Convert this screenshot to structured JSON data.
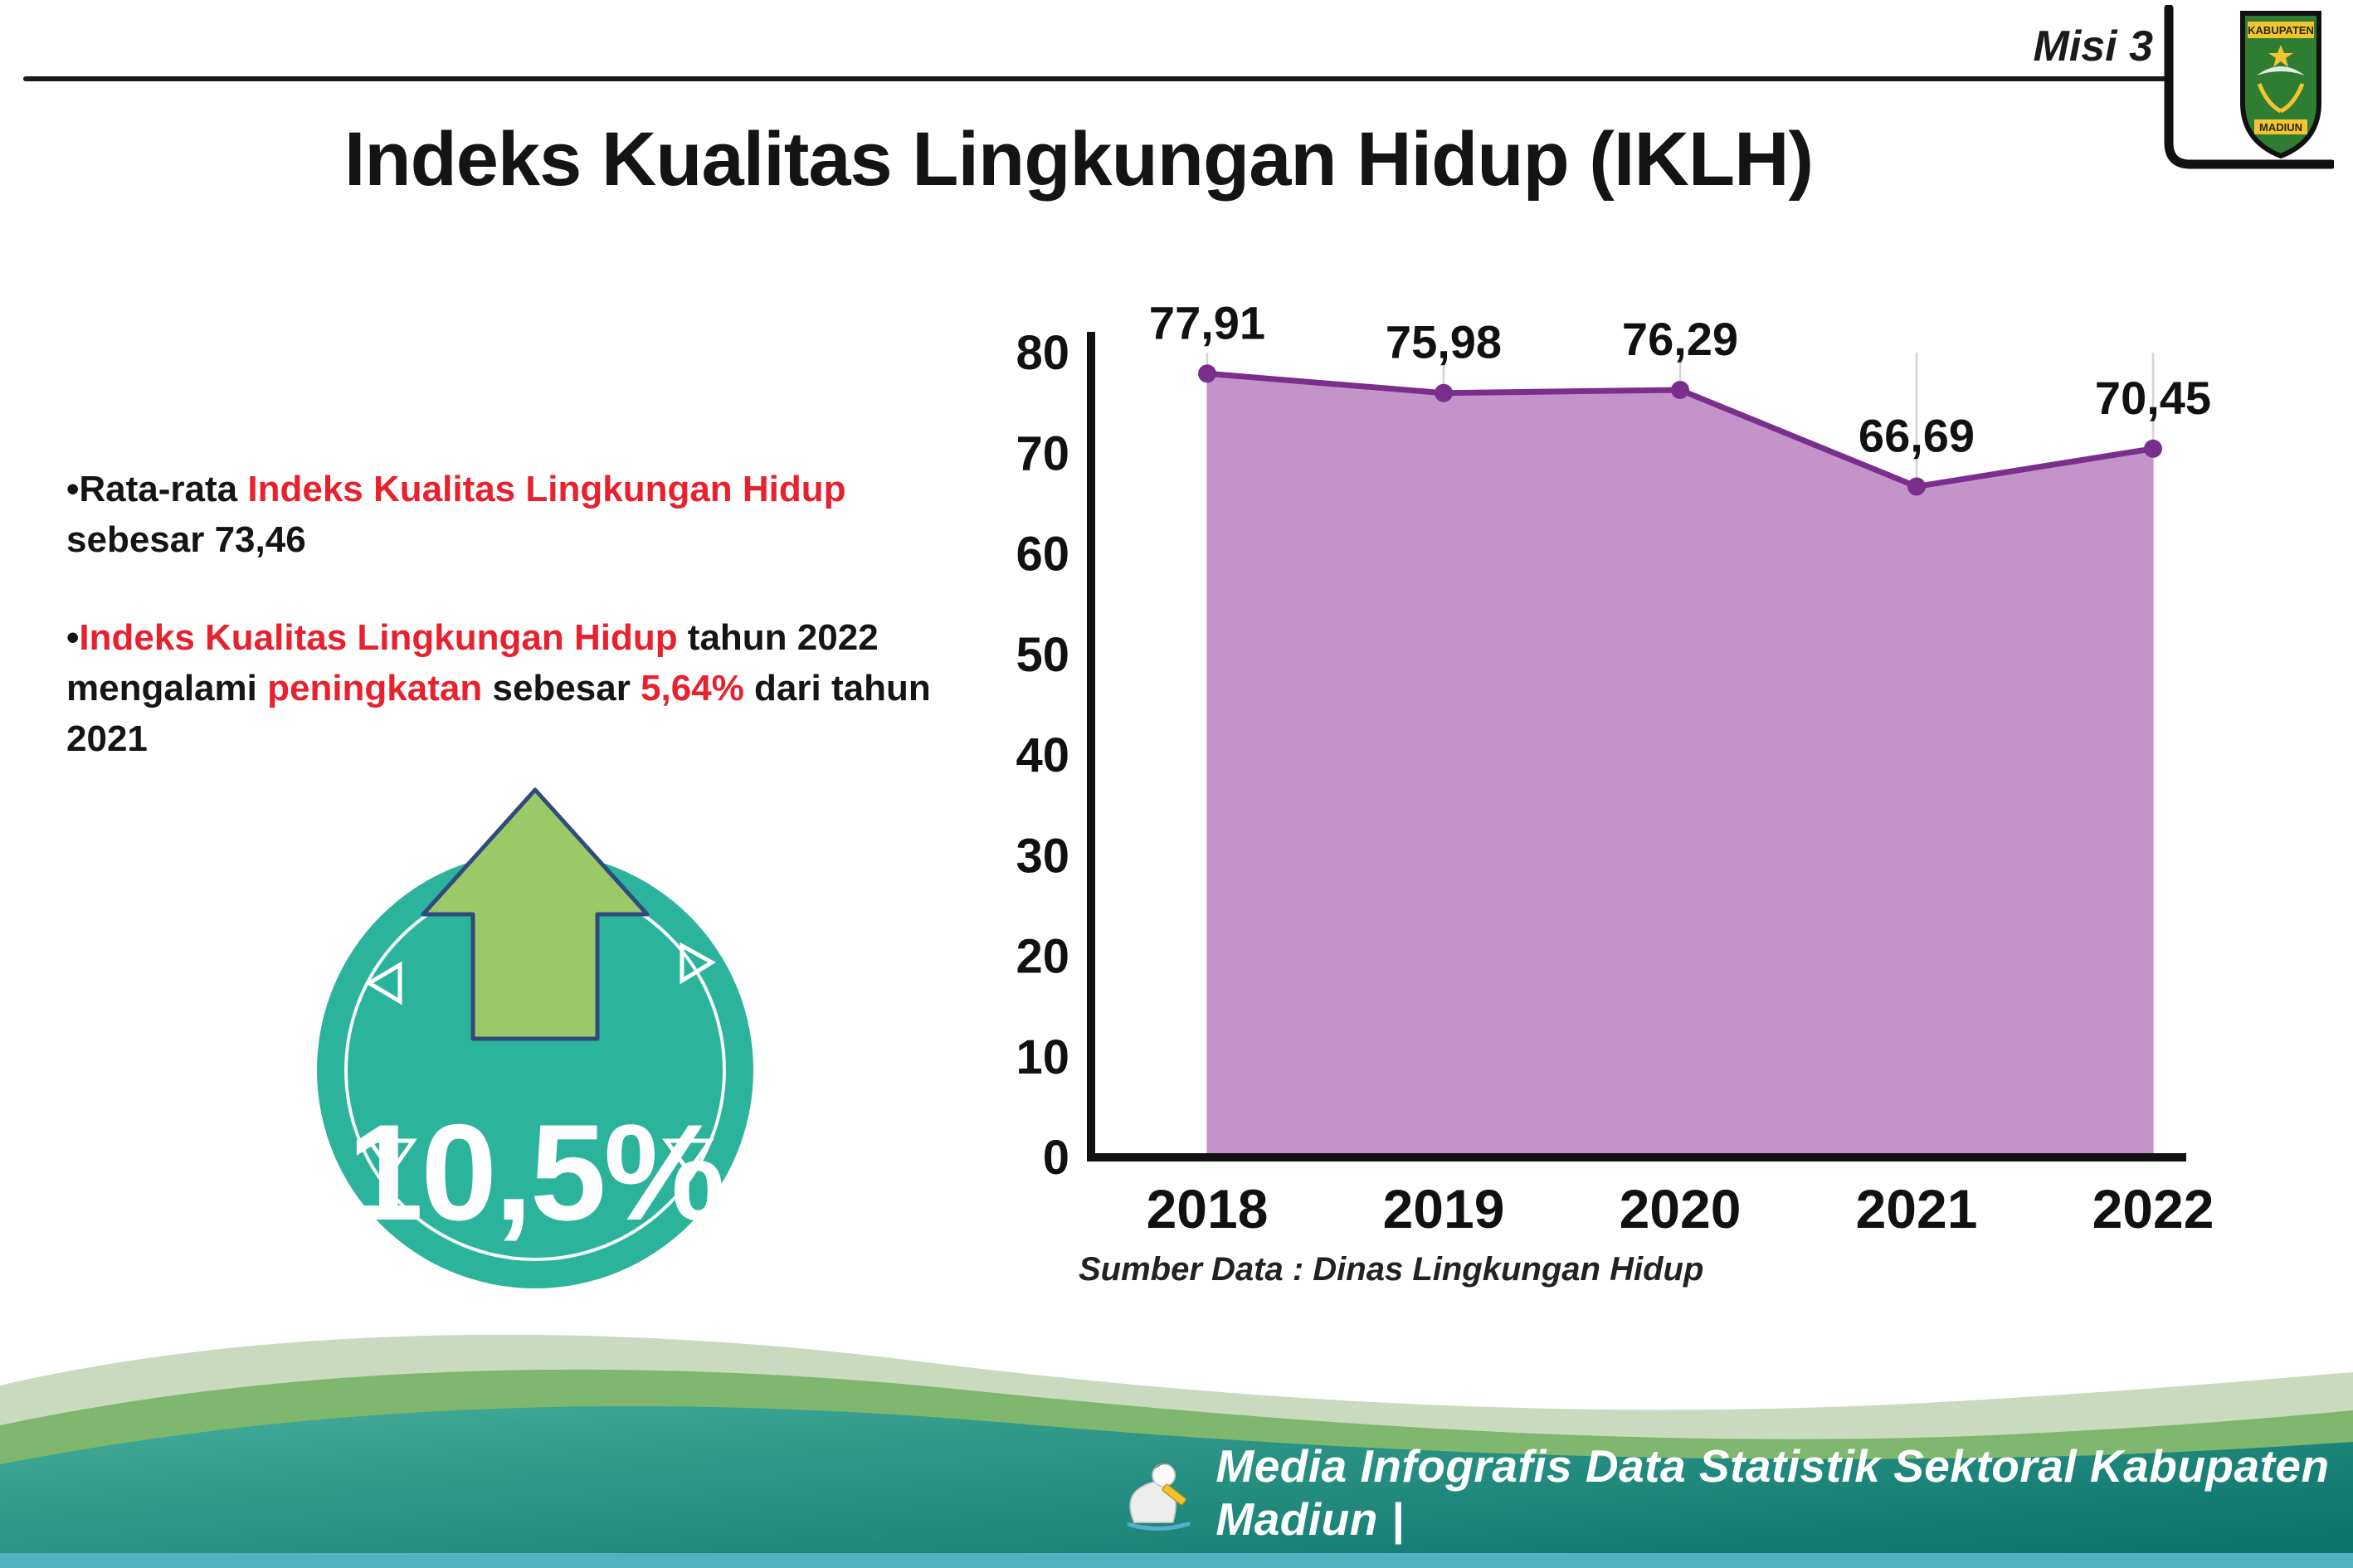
{
  "header": {
    "misi_label": "Misi 3",
    "title": "Indeks Kualitas Lingkungan Hidup (IKLH)"
  },
  "logo": {
    "name": "kabupaten-madiun-logo",
    "line1": "KABUPATEN",
    "line2": "MADIUN"
  },
  "bullets": [
    {
      "bullet": "•",
      "segments": [
        {
          "text": "Rata-rata ",
          "color": "default"
        },
        {
          "text": "Indeks Kualitas Lingkungan Hidup",
          "color": "red"
        },
        {
          "text": " sebesar 73,46",
          "color": "default"
        }
      ]
    },
    {
      "bullet": "•",
      "segments": [
        {
          "text": "Indeks Kualitas Lingkungan Hidup",
          "color": "red"
        },
        {
          "text": " tahun 2022 mengalami ",
          "color": "default"
        },
        {
          "text": "peningkatan",
          "color": "red"
        },
        {
          "text": " sebesar ",
          "color": "default"
        },
        {
          "text": "5,64%",
          "color": "red"
        },
        {
          "text": " dari tahun 2021",
          "color": "default"
        }
      ]
    }
  ],
  "badge": {
    "value": "10,5%",
    "icon": "up-arrow-icon",
    "circle_color": "#2cb39c",
    "arrow_color": "#9cc968"
  },
  "chart_data": {
    "type": "area",
    "title": "",
    "categories": [
      "2018",
      "2019",
      "2020",
      "2021",
      "2022"
    ],
    "values": [
      77.91,
      75.98,
      76.29,
      66.69,
      70.45
    ],
    "point_labels": [
      "77,91",
      "75,98",
      "76,29",
      "66,69",
      "70,45"
    ],
    "ylim": [
      0,
      80
    ],
    "yticks": [
      0,
      10,
      20,
      30,
      40,
      50,
      60,
      70,
      80
    ],
    "grid": "vertical",
    "legend": "none",
    "fill_color": "#c493ca",
    "line_color": "#7b2f8d",
    "source": "Sumber Data : Dinas Lingkungan Hidup"
  },
  "footer": {
    "caption": "Media Infografis Data Statistik Sektoral Kabupaten Madiun |",
    "icon": "mascot-icon"
  },
  "colors": {
    "highlight_red": "#e7222e",
    "teal_badge": "#2cb39c",
    "arrow_green": "#9cc968",
    "chart_fill": "#c493ca",
    "chart_line": "#7b2f8d",
    "footer_green": "#7eb76d",
    "footer_teal_dark": "#0d746d"
  }
}
